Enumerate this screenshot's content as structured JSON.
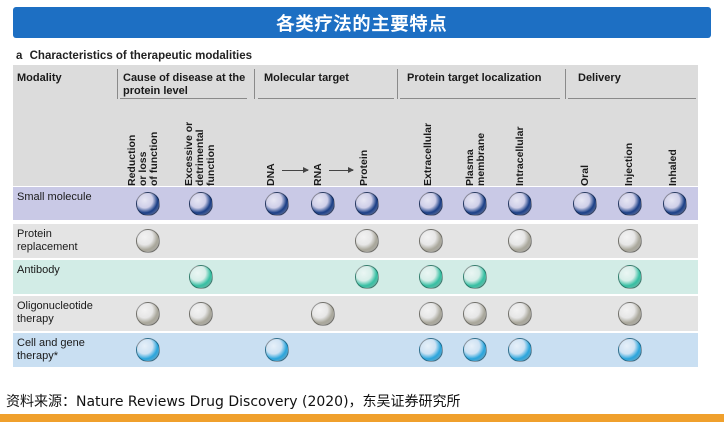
{
  "banner": {
    "title": "各类疗法的主要特点"
  },
  "figure": {
    "panel": "a",
    "title": "Characteristics of therapeutic modalities",
    "modality_header": "Modality",
    "groups": [
      {
        "label": "Cause of disease at the protein level"
      },
      {
        "label": "Molecular target"
      },
      {
        "label": "Protein target localization"
      },
      {
        "label": "Delivery"
      }
    ],
    "columns": [
      "Reduction or loss of function",
      "Excessive or detrimental function",
      "DNA",
      "RNA",
      "Protein",
      "Extracellular",
      "Plasma membrane",
      "Intracellular",
      "Oral",
      "Injection",
      "Inhaled"
    ],
    "rows": [
      {
        "label": "Small molecule",
        "bg": "#c9c9e6",
        "dot": "navy",
        "marks": [
          1,
          1,
          1,
          1,
          1,
          1,
          1,
          1,
          1,
          1,
          1
        ]
      },
      {
        "label": "Protein replacement",
        "bg": "#e4e4e4",
        "dot": "gray",
        "marks": [
          1,
          0,
          0,
          0,
          1,
          1,
          0,
          1,
          0,
          1,
          0
        ]
      },
      {
        "label": "Antibody",
        "bg": "#d2ece6",
        "dot": "teal",
        "marks": [
          0,
          1,
          0,
          0,
          1,
          1,
          1,
          0,
          0,
          1,
          0
        ]
      },
      {
        "label": "Oligonucleotide therapy",
        "bg": "#e4e4e4",
        "dot": "gray",
        "marks": [
          1,
          1,
          0,
          1,
          0,
          1,
          1,
          1,
          0,
          1,
          0
        ]
      },
      {
        "label": "Cell and gene therapy*",
        "bg": "#c9dff2",
        "dot": "blue",
        "marks": [
          1,
          0,
          1,
          0,
          0,
          1,
          1,
          1,
          0,
          1,
          0
        ]
      }
    ],
    "colors": {
      "navy": "#1a3f86",
      "gray": "#a9a79b",
      "teal": "#35bfa2",
      "blue": "#2aa5dc",
      "banner": "#1d6fc3",
      "accent_line": "#f0a02c"
    }
  },
  "footer": {
    "source": "资料来源：Nature Reviews Drug Discovery (2020)，东吴证券研究所"
  }
}
